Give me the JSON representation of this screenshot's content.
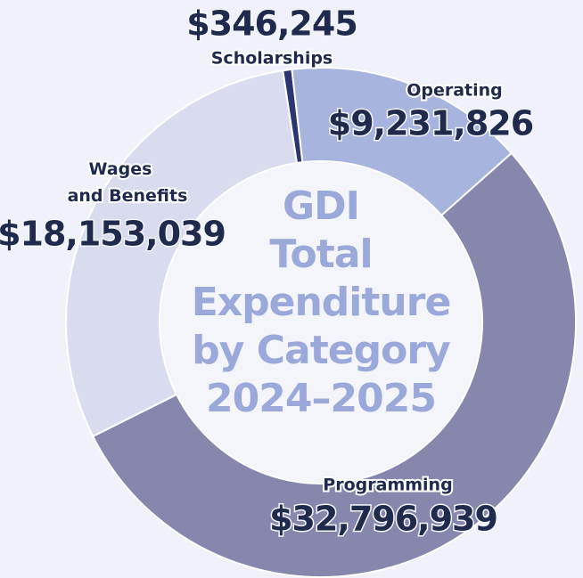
{
  "chart_data": {
    "type": "donut",
    "title": [
      "GDI",
      "Total",
      "Expenditure",
      "by Category",
      "2024–2025"
    ],
    "categories": [
      "Scholarships",
      "Operating",
      "Programming",
      "Wages and Benefits"
    ],
    "values": [
      346245,
      9231826,
      32796939,
      18153039
    ],
    "value_labels": [
      "$346,245",
      "$9,231,826",
      "$32,796,939",
      "$18,153,039"
    ],
    "colors": [
      "#2b3572",
      "#a7b4de",
      "#8787ae",
      "#d9dbef"
    ]
  }
}
